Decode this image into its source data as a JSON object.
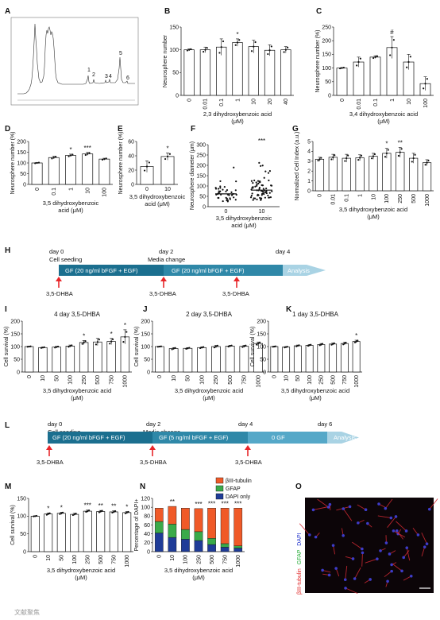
{
  "panel_labels": [
    "A",
    "B",
    "C",
    "D",
    "E",
    "F",
    "G",
    "H",
    "I",
    "J",
    "K",
    "L",
    "M",
    "N",
    "O"
  ],
  "panel_A": {
    "peak_labels": [
      "1",
      "2",
      "3",
      "4",
      "5",
      "6"
    ]
  },
  "panel_H": {
    "day_labels": [
      "day 0",
      "day 2",
      "day 4"
    ],
    "sub_labels": [
      "Cell seeding",
      "Media change"
    ],
    "segments": [
      "GF (20 ng/ml bFGF + EGF)",
      "GF (20 ng/ml bFGF + EGF)"
    ],
    "arrow_end": "Analysis",
    "treatment": [
      "3,5-DHBA",
      "3,5-DHBA",
      "3,5-DHBA"
    ]
  },
  "panel_L": {
    "day_labels": [
      "day 0",
      "day 2",
      "day 4",
      "day 6"
    ],
    "sub_labels": [
      "Cell seeding",
      "Media change"
    ],
    "segments": [
      "GF (20 ng/ml bFGF + EGF)",
      "GF (5 ng/ml bFGF + EGF)",
      "0 GF"
    ],
    "arrow_end": "Analysis",
    "treatment": [
      "3,5-DHBA",
      "3,5-DHBA",
      "3,5-DHBA"
    ]
  },
  "panel_O": {
    "side_label_parts": [
      "βIII-tubulin",
      "GFAP",
      "DAPI"
    ],
    "colors": {
      "tubulin": "#e02828",
      "gfap": "#22aa33",
      "dapi": "#2233cc"
    }
  },
  "watermark": "文献聚焦",
  "colors": {
    "bar": "#ffffff",
    "edge": "#111111",
    "timeline_dark": "#1b6f8f",
    "timeline_light": "#a9d3e4",
    "arrow_red": "#e8262a",
    "n_tubulin": "#f05a28",
    "n_gfap": "#3aaa4a",
    "n_dapi": "#1f3c98"
  },
  "chart_data": [
    {
      "panel": "B",
      "type": "bar",
      "categories": [
        "0",
        "0.01",
        "0.1",
        "1",
        "10",
        "20",
        "40"
      ],
      "values": [
        100,
        100,
        106,
        116,
        107,
        99,
        100
      ],
      "errors": [
        2,
        6,
        18,
        8,
        14,
        12,
        7
      ],
      "ylabel": "Neurosphere number",
      "ylim": [
        0,
        150
      ],
      "yticks": [
        0,
        50,
        100,
        150
      ],
      "xlabel": "2,3 dihydroxybenzoic acid",
      "xunit": "(μM)",
      "annotations": {
        "3": "*"
      }
    },
    {
      "panel": "C",
      "type": "bar",
      "categories": [
        "0",
        "0.01",
        "0.1",
        "1",
        "10",
        "100"
      ],
      "values": [
        100,
        122,
        140,
        175,
        122,
        43
      ],
      "errors": [
        2,
        18,
        5,
        40,
        28,
        25
      ],
      "ylabel": "Neurosphere number (%)",
      "ylim": [
        0,
        250
      ],
      "yticks": [
        0,
        50,
        100,
        150,
        200,
        250
      ],
      "xlabel": "3,4 dihydroxybenzoic acid",
      "xunit": "(μM)",
      "annotations": {
        "3": "#"
      }
    },
    {
      "panel": "D",
      "type": "bar",
      "categories": [
        "0",
        "0.1",
        "1",
        "10",
        "100"
      ],
      "values": [
        100,
        125,
        135,
        142,
        118
      ],
      "errors": [
        2,
        6,
        6,
        7,
        4
      ],
      "ylabel": "Neurosphere number (%)",
      "ylim": [
        0,
        200
      ],
      "yticks": [
        0,
        50,
        100,
        150,
        200
      ],
      "xlabel": "3,5 dihydroxybenzoic",
      "xlabel2": "acid (μM)",
      "annotations": {
        "2": "*",
        "3": "***"
      }
    },
    {
      "panel": "E",
      "type": "bar",
      "categories": [
        "0",
        "10"
      ],
      "values": [
        25,
        39
      ],
      "errors": [
        8,
        5
      ],
      "ylabel": "Neurosphere number (%)",
      "ylim": [
        0,
        60
      ],
      "yticks": [
        0,
        20,
        40,
        60
      ],
      "xlabel": "3,5 dihydroxybenzoic",
      "xlabel2": "acid (μM)",
      "annotations": {
        "1": "*"
      }
    },
    {
      "panel": "F",
      "type": "scatter",
      "categories": [
        "0",
        "10"
      ],
      "means": [
        62,
        80
      ],
      "ylabel": "Neurosphere diameter (μm)",
      "ylim": [
        0,
        300
      ],
      "yticks": [
        0,
        50,
        100,
        150,
        200,
        250,
        300
      ],
      "xlabel": "3,5 dihydroxybenzoic",
      "xlabel2": "acid (μM)",
      "annotations": {
        "1": "***"
      }
    },
    {
      "panel": "G",
      "type": "bar",
      "categories": [
        "0",
        "0.01",
        "0.1",
        "1",
        "10",
        "100",
        "250",
        "500",
        "1000"
      ],
      "values": [
        3.2,
        3.4,
        3.3,
        3.35,
        3.5,
        3.8,
        3.9,
        3.3,
        2.85
      ],
      "errors": [
        0.2,
        0.3,
        0.4,
        0.3,
        0.3,
        0.5,
        0.5,
        0.5,
        0.3
      ],
      "ylabel": "Normalized Cell Index (a.u.)",
      "ylim": [
        0,
        5
      ],
      "yticks": [
        0,
        1,
        2,
        3,
        4,
        5
      ],
      "xlabel": "3,5 dihydroxybenzoic acid",
      "xunit": "(μM)",
      "annotations": {
        "5": "*",
        "6": "**"
      }
    },
    {
      "panel": "I",
      "type": "bar",
      "title": "4 day 3,5-DHBA",
      "categories": [
        "0",
        "10",
        "50",
        "100",
        "250",
        "500",
        "750",
        "1000"
      ],
      "values": [
        100,
        96,
        98,
        102,
        116,
        118,
        120,
        138
      ],
      "errors": [
        1,
        2,
        3,
        4,
        8,
        14,
        12,
        28
      ],
      "ylabel": "Cell survival (%)",
      "ylim": [
        0,
        200
      ],
      "yticks": [
        0,
        50,
        100,
        150,
        200
      ],
      "xlabel": "3,5 dihydroxybenzoic acid",
      "xunit": "(μM)",
      "annotations": {
        "4": "*",
        "6": "*",
        "7": "*"
      }
    },
    {
      "panel": "J",
      "type": "bar",
      "title": "2 day 3,5-DHBA",
      "categories": [
        "0",
        "10",
        "50",
        "100",
        "250",
        "500",
        "750",
        "1000"
      ],
      "values": [
        100,
        92,
        93,
        96,
        100,
        102,
        101,
        112
      ],
      "errors": [
        1,
        4,
        3,
        3,
        5,
        3,
        4,
        6
      ],
      "ylabel": "Cell survival (%)",
      "ylim": [
        0,
        200
      ],
      "yticks": [
        0,
        50,
        100,
        150,
        200
      ],
      "xlabel": "3,5 dihydroxybenzoic acid",
      "xunit": "(μM)",
      "annotations": {}
    },
    {
      "panel": "K",
      "type": "bar",
      "title": "1 day 3,5-DHBA",
      "categories": [
        "0",
        "10",
        "50",
        "100",
        "250",
        "500",
        "750",
        "1000"
      ],
      "values": [
        100,
        98,
        103,
        105,
        108,
        110,
        112,
        120
      ],
      "errors": [
        1,
        2,
        3,
        3,
        4,
        4,
        5,
        5
      ],
      "ylabel": "Cell survival (%)",
      "ylim": [
        0,
        200
      ],
      "yticks": [
        0,
        50,
        100,
        150,
        200
      ],
      "xlabel": "3,5 dihydroxybenzoic acid",
      "xunit": "(μM)",
      "annotations": {
        "7": "*"
      }
    },
    {
      "panel": "M",
      "type": "bar",
      "categories": [
        "0",
        "10",
        "50",
        "100",
        "250",
        "500",
        "750",
        "1000"
      ],
      "values": [
        100,
        106,
        108,
        105,
        114,
        113,
        112,
        110
      ],
      "errors": [
        1,
        3,
        3,
        3,
        3,
        3,
        3,
        3
      ],
      "ylabel": "Cell survival (%)",
      "ylim": [
        0,
        150
      ],
      "yticks": [
        0,
        50,
        100,
        150
      ],
      "xlabel": "3,5 dihydroxybenzoic acid",
      "xunit": "(μM)",
      "annotations": {
        "1": "*",
        "2": "*",
        "4": "***",
        "5": "**",
        "6": "**",
        "7": "*"
      }
    },
    {
      "panel": "N",
      "type": "bar",
      "stacked": true,
      "categories": [
        "0",
        "10",
        "100",
        "250",
        "500",
        "750",
        "1000"
      ],
      "series": [
        {
          "name": "DAPI only",
          "values": [
            42,
            32,
            28,
            25,
            16,
            10,
            8
          ]
        },
        {
          "name": "GFAP",
          "values": [
            26,
            30,
            22,
            20,
            14,
            8,
            5
          ]
        },
        {
          "name": "βIII-tubulin",
          "values": [
            30,
            40,
            48,
            52,
            68,
            80,
            85
          ]
        }
      ],
      "ylabel": "Percentage of DAPI+",
      "ylim": [
        0,
        120
      ],
      "yticks": [
        0,
        20,
        40,
        60,
        80,
        100,
        120
      ],
      "xlabel": "3,5 dihydroxybenzoic acid",
      "xunit": "(μM)",
      "annotations": {
        "1": "**",
        "3": "***",
        "4": "***",
        "5": "***",
        "6": "***"
      }
    }
  ]
}
